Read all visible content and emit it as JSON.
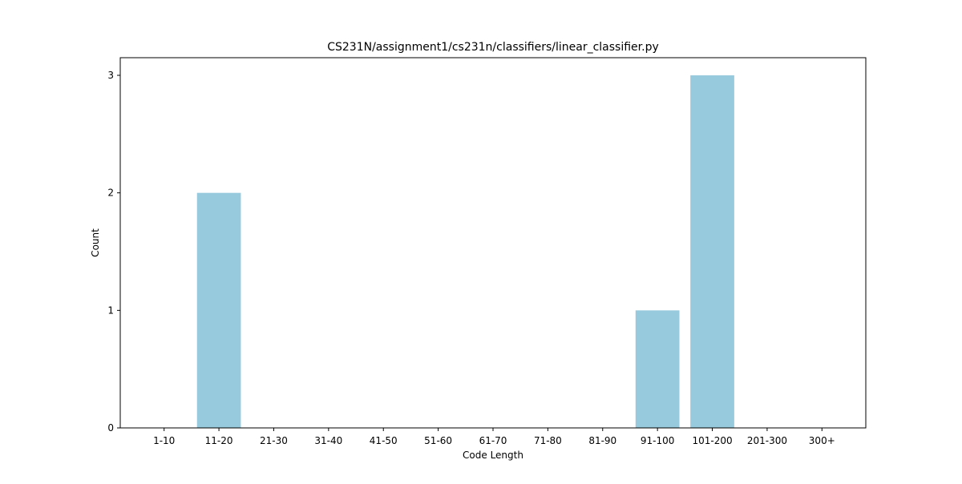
{
  "chart_data": {
    "type": "bar",
    "title": "CS231N/assignment1/cs231n/classifiers/linear_classifier.py",
    "xlabel": "Code Length",
    "ylabel": "Count",
    "categories": [
      "1-10",
      "11-20",
      "21-30",
      "31-40",
      "41-50",
      "51-60",
      "61-70",
      "71-80",
      "81-90",
      "91-100",
      "101-200",
      "201-300",
      "300+"
    ],
    "values": [
      0,
      2,
      0,
      0,
      0,
      0,
      0,
      0,
      0,
      1,
      3,
      0,
      0
    ],
    "yticks": [
      0,
      1,
      2,
      3
    ],
    "ylim": [
      0,
      3.15
    ],
    "bar_color": "#96cadc",
    "grid": false,
    "legend": false
  }
}
